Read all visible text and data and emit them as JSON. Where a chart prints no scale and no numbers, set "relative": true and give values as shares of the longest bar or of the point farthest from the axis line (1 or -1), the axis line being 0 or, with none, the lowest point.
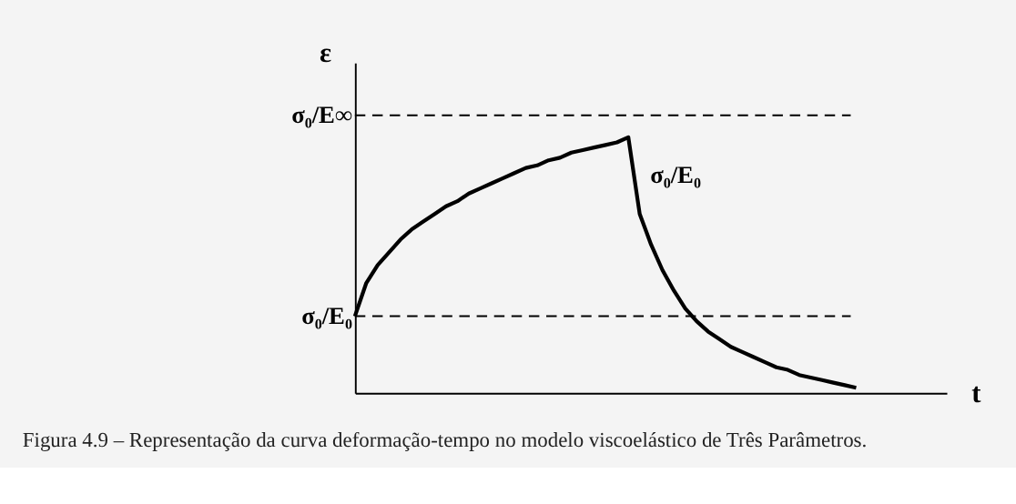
{
  "chart_data": {
    "type": "line",
    "relative": true,
    "xlabel": "t",
    "ylabel": "ε",
    "categories": [
      null,
      null,
      null,
      null,
      null,
      null,
      null,
      null,
      null,
      null,
      null,
      null,
      null,
      null,
      null,
      null,
      null,
      null,
      null,
      null,
      null,
      null,
      null,
      null,
      null,
      null,
      null,
      null,
      null,
      null,
      null,
      null,
      null,
      null,
      null,
      null,
      null,
      null,
      null,
      null,
      null,
      null,
      null,
      null,
      null
    ],
    "series": [
      {
        "color": "#000000",
        "values": [
          0.3,
          0.43,
          0.5,
          0.55,
          0.6,
          0.64,
          0.67,
          0.7,
          0.73,
          0.75,
          0.78,
          0.8,
          0.82,
          0.84,
          0.86,
          0.88,
          0.89,
          0.91,
          0.92,
          0.94,
          0.95,
          0.96,
          0.97,
          0.98,
          1.0,
          0.7,
          0.58,
          0.48,
          0.4,
          0.33,
          0.28,
          0.24,
          0.21,
          0.18,
          0.16,
          0.14,
          0.12,
          0.1,
          0.09,
          0.07,
          0.06,
          0.05,
          0.04,
          0.03,
          0.02
        ]
      }
    ],
    "ref_lines": [
      {
        "axis": "y",
        "value": 1.086,
        "label": "σ₀/E∞",
        "line_style": "dashed"
      },
      {
        "axis": "y",
        "value": 0.3,
        "label": "σ₀/E₀",
        "line_style": "dashed"
      }
    ],
    "annotations": [
      "σ₀/E₀",
      "Figura 4.9 – Representação da curva deformação-tempo no modelo viscoelástico de Três Parâmetros."
    ],
    "grid": false,
    "legend": false,
    "marker": "none",
    "line_style": "solid"
  }
}
